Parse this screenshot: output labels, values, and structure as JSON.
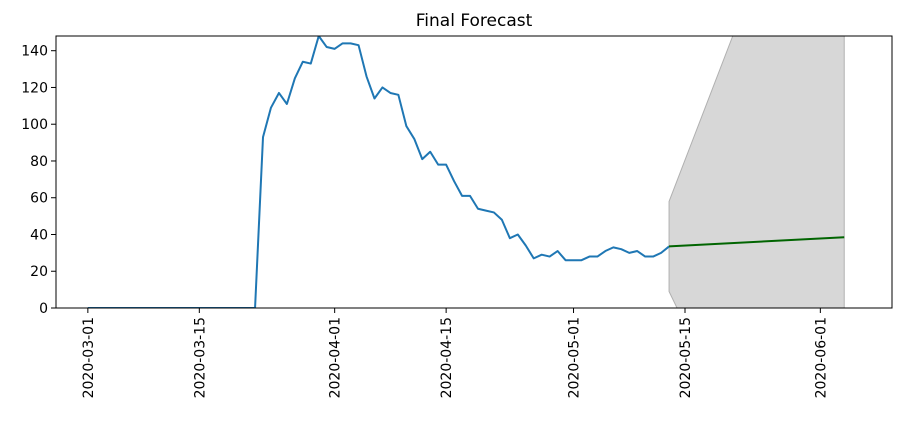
{
  "chart_data": {
    "type": "line",
    "title": "Final Forecast",
    "xlabel": "",
    "ylabel": "",
    "x_axis": {
      "type": "date",
      "range": [
        "2020-02-26",
        "2020-06-10"
      ],
      "tick_labels": [
        "2020-03-01",
        "2020-03-15",
        "2020-04-01",
        "2020-04-15",
        "2020-05-01",
        "2020-05-15",
        "2020-06-01"
      ],
      "label_rotation": "vertical"
    },
    "y_axis": {
      "range": [
        0,
        148
      ],
      "ticks": [
        0,
        20,
        40,
        60,
        80,
        100,
        120,
        140
      ]
    },
    "grid": false,
    "legend": "none",
    "series": [
      {
        "role": "observed",
        "color": "#1f77b4",
        "points": [
          [
            "2020-03-01",
            0
          ],
          [
            "2020-03-22",
            0
          ],
          [
            "2020-03-23",
            93
          ],
          [
            "2020-03-24",
            109
          ],
          [
            "2020-03-25",
            117
          ],
          [
            "2020-03-26",
            111
          ],
          [
            "2020-03-27",
            125
          ],
          [
            "2020-03-28",
            134
          ],
          [
            "2020-03-29",
            133
          ],
          [
            "2020-03-30",
            148
          ],
          [
            "2020-03-31",
            142
          ],
          [
            "2020-04-01",
            141
          ],
          [
            "2020-04-02",
            144
          ],
          [
            "2020-04-03",
            144
          ],
          [
            "2020-04-04",
            143
          ],
          [
            "2020-04-05",
            126
          ],
          [
            "2020-04-06",
            114
          ],
          [
            "2020-04-07",
            120
          ],
          [
            "2020-04-08",
            117
          ],
          [
            "2020-04-09",
            116
          ],
          [
            "2020-04-10",
            99
          ],
          [
            "2020-04-11",
            92
          ],
          [
            "2020-04-12",
            81
          ],
          [
            "2020-04-13",
            85
          ],
          [
            "2020-04-14",
            78
          ],
          [
            "2020-04-15",
            78
          ],
          [
            "2020-04-16",
            69
          ],
          [
            "2020-04-17",
            61
          ],
          [
            "2020-04-18",
            61
          ],
          [
            "2020-04-19",
            54
          ],
          [
            "2020-04-20",
            53
          ],
          [
            "2020-04-21",
            52
          ],
          [
            "2020-04-22",
            48
          ],
          [
            "2020-04-23",
            38
          ],
          [
            "2020-04-24",
            40
          ],
          [
            "2020-04-25",
            34
          ],
          [
            "2020-04-26",
            27
          ],
          [
            "2020-04-27",
            29
          ],
          [
            "2020-04-28",
            28
          ],
          [
            "2020-04-29",
            31
          ],
          [
            "2020-04-30",
            26
          ],
          [
            "2020-05-01",
            26
          ],
          [
            "2020-05-02",
            26
          ],
          [
            "2020-05-03",
            28
          ],
          [
            "2020-05-04",
            28
          ],
          [
            "2020-05-05",
            31
          ],
          [
            "2020-05-06",
            33
          ],
          [
            "2020-05-07",
            32
          ],
          [
            "2020-05-08",
            30
          ],
          [
            "2020-05-09",
            31
          ],
          [
            "2020-05-10",
            28
          ],
          [
            "2020-05-11",
            28
          ],
          [
            "2020-05-12",
            30
          ],
          [
            "2020-05-13",
            33.5
          ]
        ]
      },
      {
        "role": "forecast",
        "color": "#006400",
        "points": [
          [
            "2020-05-13",
            33.5
          ],
          [
            "2020-06-04",
            38.5
          ]
        ]
      }
    ],
    "confidence_band": {
      "color": "#d3d3d3",
      "edge_color": "#b0b0b0",
      "upper": [
        [
          "2020-05-13",
          58
        ],
        [
          "2020-05-21",
          148
        ],
        [
          "2020-06-04",
          148
        ]
      ],
      "lower": [
        [
          "2020-05-13",
          9
        ],
        [
          "2020-05-14",
          0
        ],
        [
          "2020-06-04",
          0
        ]
      ]
    }
  }
}
